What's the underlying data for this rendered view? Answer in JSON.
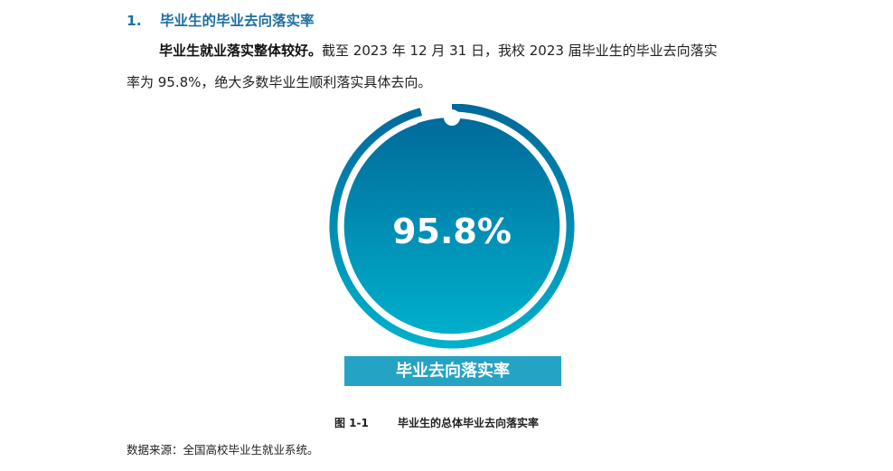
{
  "section": {
    "number": "1.",
    "title": "毕业生的毕业去向落实率"
  },
  "paragraph": {
    "lead_bold": "毕业生就业落实整体较好。",
    "line1_rest": "截至 2023 年 12 月 31 日，我校 2023 届毕业生的毕业去向落实",
    "line2": "率为 95.8%，绝大多数毕业生顺利落实具体去向。"
  },
  "chart_data": {
    "type": "gauge",
    "value": 95.8,
    "max": 100,
    "value_label": "95.8%",
    "label": "毕业去向落实率",
    "colors": {
      "top": "#016a9a",
      "bottom": "#00b0cc",
      "label_bg": "#25a3c4"
    }
  },
  "figure": {
    "number": "图 1-1",
    "caption": "毕业生的总体毕业去向落实率"
  },
  "source": "数据来源：全国高校毕业生就业系统。"
}
